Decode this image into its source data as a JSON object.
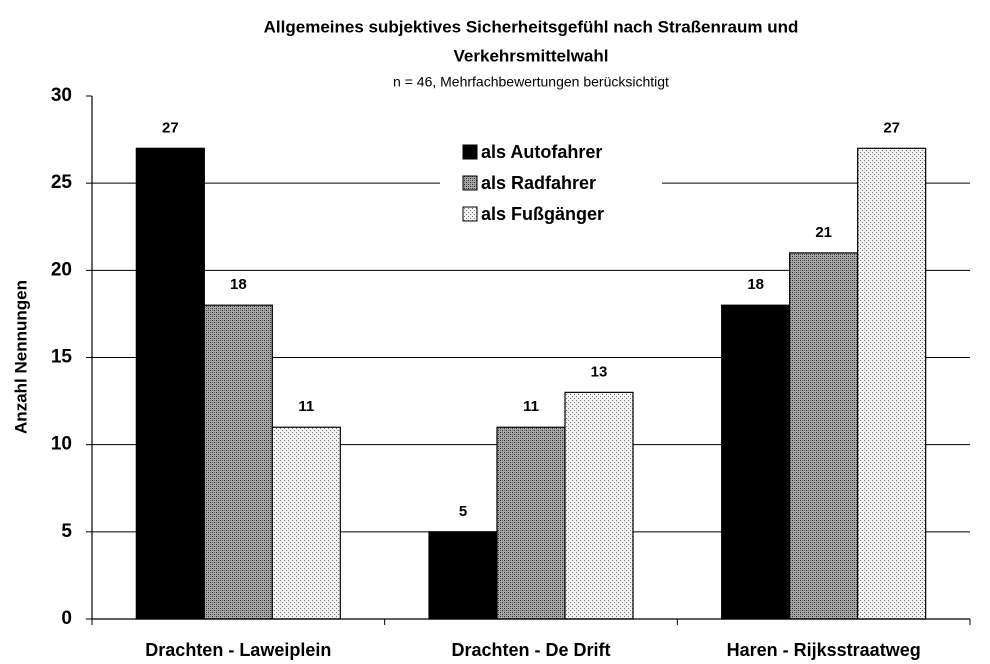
{
  "chart_data": {
    "type": "bar",
    "title": [
      "Allgemeines subjektives Sicherheitsgefühl nach Straßenraum und",
      "Verkehrsmittelwahl"
    ],
    "subtitle": "n = 46, Mehrfachbewertungen berücksichtigt",
    "y_label": "Anzahl Nennungen",
    "categories": [
      "Drachten - Laweiplein",
      "Drachten - De Drift",
      "Haren - Rijksstraatweg"
    ],
    "series": [
      {
        "name": "als Autofahrer",
        "color": "#000000",
        "values": [
          27,
          5,
          18
        ]
      },
      {
        "name": "als Radfahrer",
        "color": "#a6a6a6",
        "values": [
          18,
          11,
          21
        ]
      },
      {
        "name": "als Fußgänger",
        "color": "#f2f2f2",
        "values": [
          11,
          13,
          27
        ]
      }
    ],
    "ylim": [
      0,
      30
    ],
    "yticks": [
      0,
      5,
      10,
      15,
      20,
      25,
      30
    ],
    "grid": true,
    "legend": "top"
  }
}
